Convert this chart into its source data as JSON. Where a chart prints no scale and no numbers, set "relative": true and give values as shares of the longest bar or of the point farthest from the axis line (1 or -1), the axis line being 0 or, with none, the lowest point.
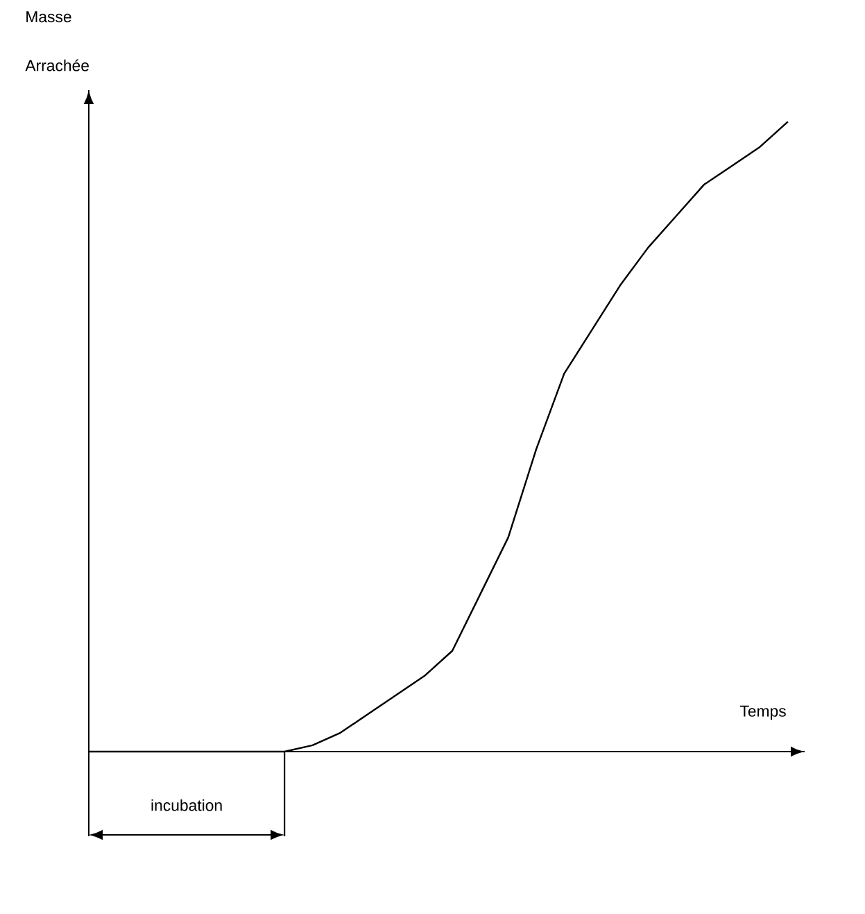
{
  "chart_data": {
    "type": "line",
    "relative": true,
    "xlabel": "Temps",
    "ylabel": "Masse Arrachée",
    "categories": [
      null,
      null,
      null,
      null,
      null,
      null,
      null,
      null,
      null,
      null,
      null,
      null,
      null,
      null,
      null,
      null,
      null,
      null,
      null,
      null,
      null,
      null,
      null,
      null,
      null,
      null
    ],
    "series": [
      {
        "color": "#000000",
        "values": [
          0,
          0,
          0,
          0,
          0,
          0,
          0,
          0,
          0.01,
          0.03,
          0.06,
          0.09,
          0.12,
          0.16,
          0.25,
          0.34,
          0.48,
          0.6,
          0.67,
          0.74,
          0.8,
          0.85,
          0.9,
          0.93,
          0.96,
          1
        ]
      }
    ],
    "annotations": [
      "incubation"
    ],
    "marker": "none"
  }
}
